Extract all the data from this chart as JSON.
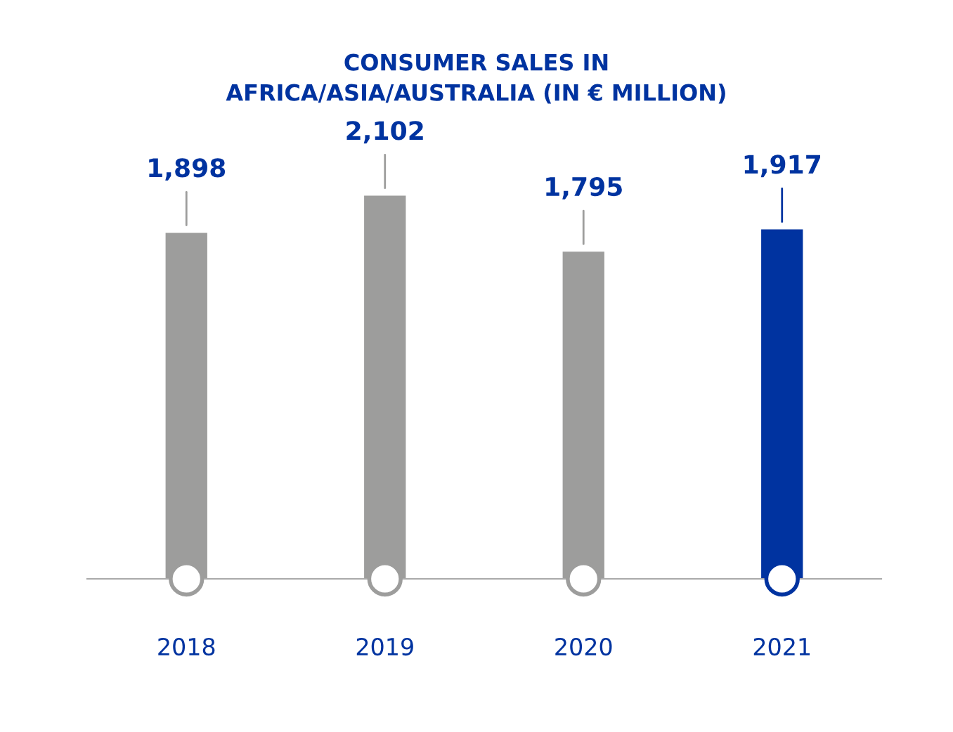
{
  "chart_data": {
    "type": "bar",
    "title": "CONSUMER SALES IN\nAFRICA/ASIA/AUSTRALIA (IN € MILLION)",
    "categories": [
      "2018",
      "2019",
      "2020",
      "2021"
    ],
    "values": [
      1898,
      2102,
      1795,
      1917
    ],
    "colors": [
      "#9d9d9c",
      "#9d9d9c",
      "#9d9d9c",
      "#0033a0"
    ],
    "value_labels": [
      "1,898",
      "2,102",
      "1,795",
      "1,917"
    ],
    "grid": false,
    "legend": false
  }
}
